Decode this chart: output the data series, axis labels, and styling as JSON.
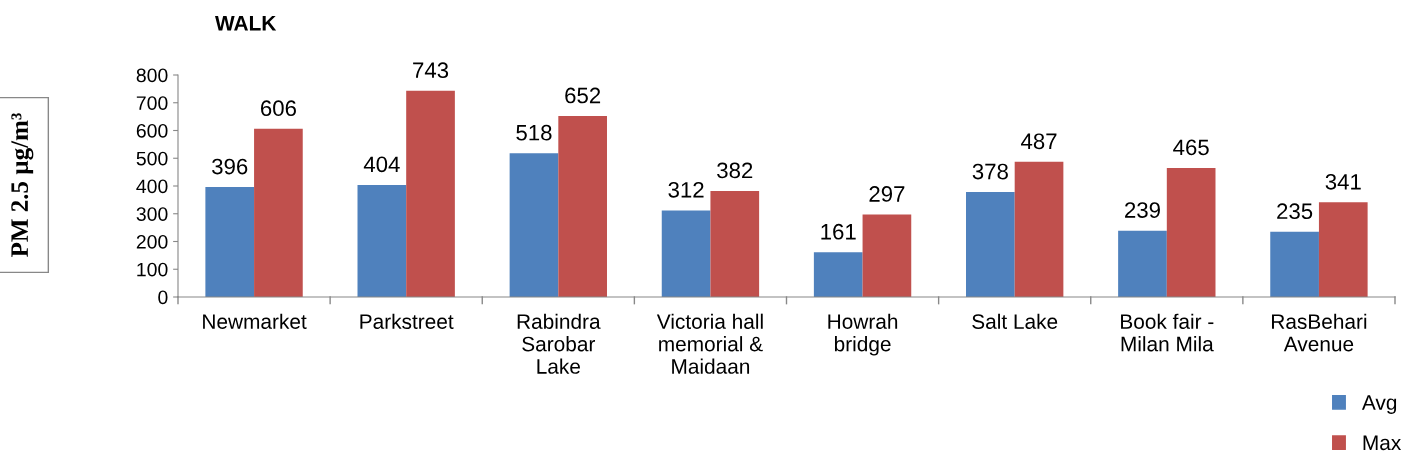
{
  "chart_data": {
    "type": "bar",
    "title": "WALK",
    "ylabel": "PM 2.5 µg/m³",
    "categories": [
      "Newmarket",
      "Parkstreet",
      "Rabindra\nSarobar\nLake",
      "Victoria hall\nmemorial &\nMaidaan",
      "Howrah\nbridge",
      "Salt Lake",
      "Book fair -\nMilan Mila",
      "RasBehari\nAvenue"
    ],
    "series": [
      {
        "name": "Avg",
        "color": "#4f81bd",
        "values": [
          396,
          404,
          518,
          312,
          161,
          378,
          239,
          235
        ]
      },
      {
        "name": "Max",
        "color": "#c0504d",
        "values": [
          606,
          743,
          652,
          382,
          297,
          487,
          465,
          341
        ]
      }
    ],
    "ylim": [
      0,
      800
    ],
    "yticks": [
      0,
      100,
      200,
      300,
      400,
      500,
      600,
      700,
      800
    ],
    "grid": false,
    "legend": "bottom right",
    "data_labels": true
  }
}
